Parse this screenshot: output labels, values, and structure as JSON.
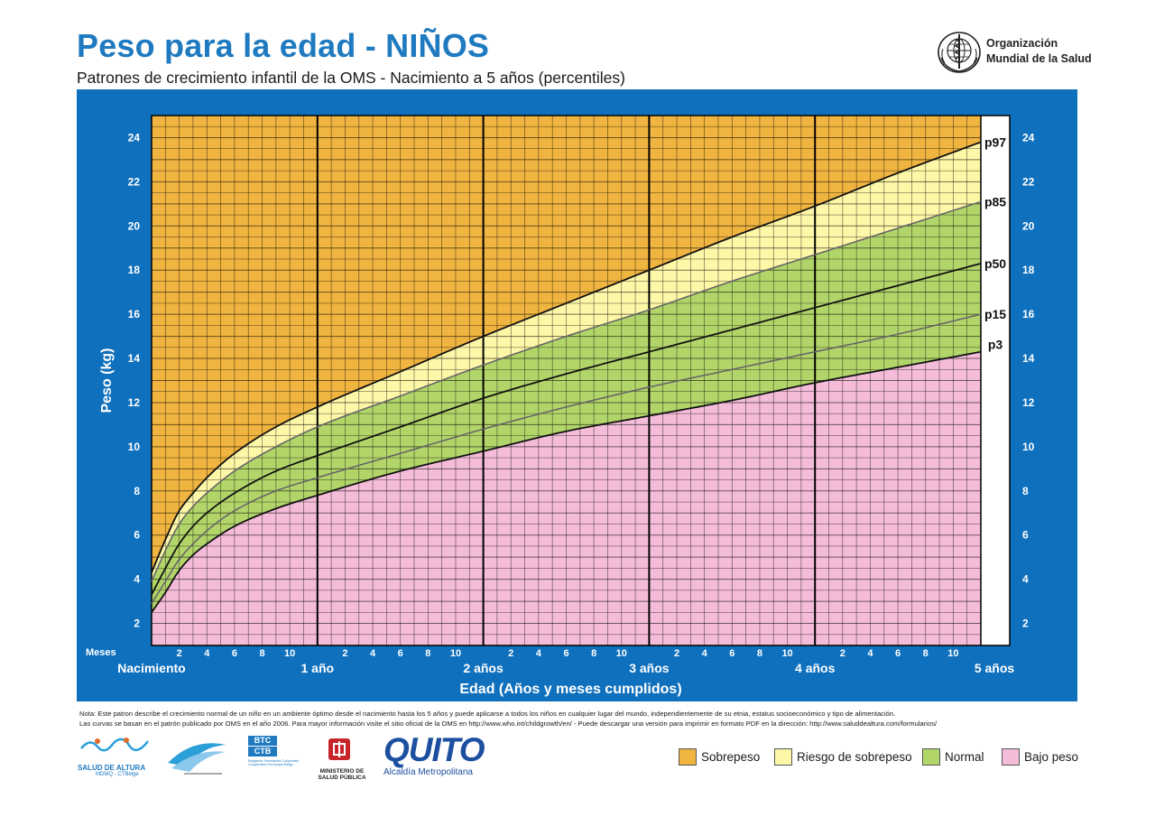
{
  "header": {
    "title": "Peso para la edad - NIÑOS",
    "subtitle": "Patrones de crecimiento infantil de la OMS - Nacimiento a 5 años (percentiles)",
    "org_line1": "Organización",
    "org_line2": "Mundial de la Salud"
  },
  "chart_data": {
    "type": "line",
    "ylabel": "Peso (kg)",
    "xlabel": "Edad (Años y meses cumplidos)",
    "xlim": [
      0,
      60
    ],
    "ylim": [
      1,
      25
    ],
    "y_ticks": [
      2,
      4,
      6,
      8,
      10,
      12,
      14,
      16,
      18,
      20,
      22,
      24
    ],
    "month_axis_label": "Meses",
    "month_ticks": [
      "2",
      "4",
      "6",
      "8",
      "10"
    ],
    "year_labels": [
      "Nacimiento",
      "1 año",
      "2 años",
      "3 años",
      "4 años",
      "5 años"
    ],
    "grid": true,
    "x": [
      0,
      1,
      2,
      3,
      4,
      6,
      9,
      12,
      18,
      24,
      30,
      36,
      42,
      48,
      54,
      60
    ],
    "series": [
      {
        "name": "p97",
        "values": [
          4.3,
          5.8,
          7.1,
          7.9,
          8.6,
          9.7,
          10.9,
          11.8,
          13.4,
          15.0,
          16.5,
          18.0,
          19.5,
          20.9,
          22.4,
          23.8
        ]
      },
      {
        "name": "p85",
        "values": [
          3.9,
          5.3,
          6.5,
          7.3,
          7.9,
          8.9,
          10.0,
          10.9,
          12.3,
          13.7,
          15.0,
          16.2,
          17.5,
          18.7,
          19.9,
          21.1
        ]
      },
      {
        "name": "p50",
        "values": [
          3.3,
          4.5,
          5.6,
          6.4,
          7.0,
          7.9,
          8.9,
          9.6,
          10.9,
          12.2,
          13.3,
          14.3,
          15.3,
          16.3,
          17.3,
          18.3
        ]
      },
      {
        "name": "p15",
        "values": [
          2.9,
          3.9,
          4.9,
          5.6,
          6.2,
          7.1,
          8.0,
          8.6,
          9.7,
          10.8,
          11.8,
          12.7,
          13.5,
          14.3,
          15.1,
          16.0
        ]
      },
      {
        "name": "p3",
        "values": [
          2.5,
          3.4,
          4.4,
          5.1,
          5.6,
          6.4,
          7.2,
          7.8,
          8.9,
          9.8,
          10.7,
          11.4,
          12.1,
          12.9,
          13.6,
          14.3
        ]
      }
    ],
    "zones": [
      {
        "name": "Sobrepeso",
        "color": "#f0b440"
      },
      {
        "name": "Riesgo de sobrepeso",
        "color": "#fdf7a8"
      },
      {
        "name": "Normal",
        "color": "#b2d56a"
      },
      {
        "name": "Bajo peso",
        "color": "#f4bcd8"
      }
    ],
    "panel_color": "#0f70bd"
  },
  "notes": {
    "line1": "Nota: Este patron describe el crecimiento normal de un niño en un ambiente óptimo desde el nacimiento hasta los 5 años y puede aplicarse a todos los niños en cualquier lugar del mundo, independientemente de su etnia, estatus socioeconómico y tipo de alimentación.",
    "line2": "Las curvas se basan en el patrón publicado por OMS en el año 2006. Para mayor información visite el sitio oficial de la OMS en http://www.who.int/childgrowth/en/ - Puede descargar una versión para imprimir en formato PDF en la dirección: http://www.saluddealtura.com/formularios/"
  },
  "partners": {
    "salud_name": "SALUD DE ALTURA",
    "salud_sub": "MDMQ - CTBelge",
    "btc_top": "BTC",
    "btc_bottom": "CTB",
    "btc_sub1": "Belgische Technische Coöperatie",
    "btc_sub2": "Coopération Technique Belge",
    "msp_line1": "MINISTERIO",
    "msp_line2": "DE",
    "msp_line3": "SALUD PÚBLICA",
    "quito_name": "QUITO",
    "quito_sub": "Alcaldía Metropolitana"
  },
  "legend": [
    {
      "label": "Sobrepeso",
      "color": "#f0b440"
    },
    {
      "label": "Riesgo de sobrepeso",
      "color": "#fdf7a8"
    },
    {
      "label": "Normal",
      "color": "#b2d56a"
    },
    {
      "label": "Bajo peso",
      "color": "#f4bcd8"
    }
  ]
}
